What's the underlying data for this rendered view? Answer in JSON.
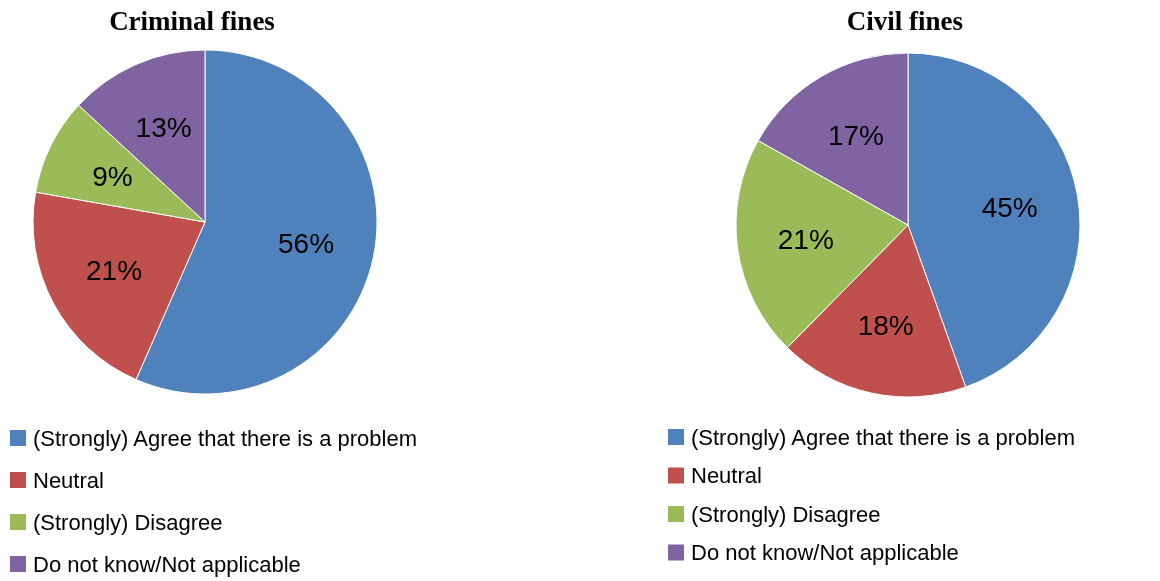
{
  "chart_data": [
    {
      "type": "pie",
      "title": "Criminal fines",
      "categories": [
        "(Strongly) Agree that there is a problem",
        "Neutral",
        "(Strongly) Disagree",
        "Do not know/Not applicable"
      ],
      "values": [
        56,
        21,
        9,
        13
      ],
      "value_labels": [
        "56%",
        "21%",
        "9%",
        "13%"
      ],
      "colors": [
        "#4f81bd",
        "#c0504d",
        "#9bbb59",
        "#8064a2"
      ],
      "legend": "bottom"
    },
    {
      "type": "pie",
      "title": "Civil fines",
      "categories": [
        "(Strongly) Agree that there is a problem",
        "Neutral",
        "(Strongly) Disagree",
        "Do not know/Not applicable"
      ],
      "values": [
        45,
        18,
        21,
        17
      ],
      "value_labels": [
        "45%",
        "18%",
        "21%",
        "17%"
      ],
      "colors": [
        "#4f81bd",
        "#c0504d",
        "#9bbb59",
        "#8064a2"
      ],
      "legend": "bottom"
    }
  ]
}
